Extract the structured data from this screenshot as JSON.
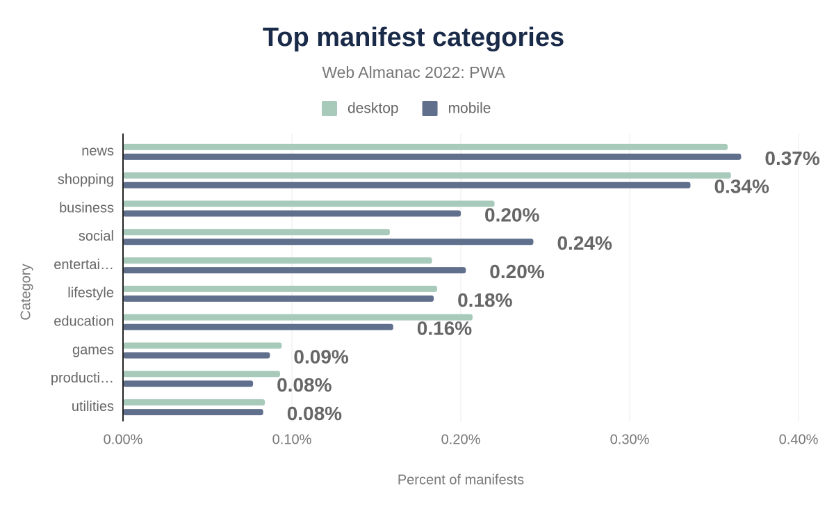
{
  "chart_data": {
    "type": "hbar",
    "title": "Top manifest categories",
    "subtitle": "Web Almanac 2022: PWA",
    "x_label": "Percent of manifests",
    "y_label": "Category",
    "legend": "top",
    "grid": true,
    "categories": [
      "news",
      "shopping",
      "business",
      "social",
      "entertai…",
      "lifestyle",
      "education",
      "games",
      "producti…",
      "utilities"
    ],
    "series": [
      {
        "name": "desktop",
        "color": "#a8cabb",
        "values": [
          0.358,
          0.36,
          0.22,
          0.158,
          0.183,
          0.186,
          0.207,
          0.094,
          0.093,
          0.084
        ]
      },
      {
        "name": "mobile",
        "color": "#5f6f8c",
        "values": [
          0.366,
          0.336,
          0.2,
          0.243,
          0.203,
          0.184,
          0.16,
          0.087,
          0.077,
          0.083
        ],
        "value_labels": [
          "0.37%",
          "0.34%",
          "0.20%",
          "0.24%",
          "0.20%",
          "0.18%",
          "0.16%",
          "0.09%",
          "0.08%",
          "0.08%"
        ]
      }
    ],
    "xlim": [
      0,
      0.4
    ],
    "xticks": [
      {
        "value": 0,
        "label": "0.00%"
      },
      {
        "value": 0.1,
        "label": "0.10%"
      },
      {
        "value": 0.2,
        "label": "0.20%"
      },
      {
        "value": 0.3,
        "label": "0.30%"
      },
      {
        "value": 0.4,
        "label": "0.40%"
      }
    ]
  }
}
